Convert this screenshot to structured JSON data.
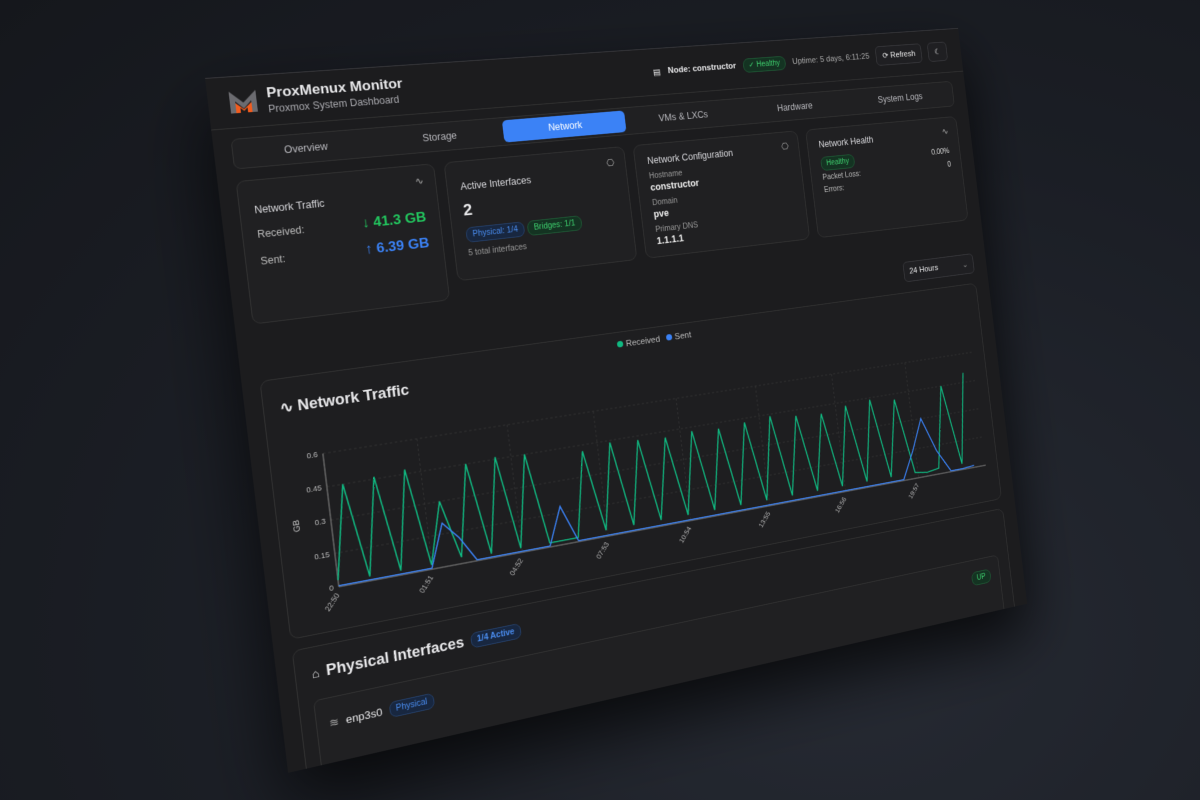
{
  "header": {
    "title": "ProxMenux Monitor",
    "subtitle": "Proxmox System Dashboard",
    "node": "Node: constructor",
    "status": "Healthy",
    "uptime": "Uptime: 5 days, 6:11:25",
    "refresh": "Refresh"
  },
  "tabs": [
    {
      "label": "Overview"
    },
    {
      "label": "Storage"
    },
    {
      "label": "Network",
      "active": true
    },
    {
      "label": "VMs & LXCs"
    },
    {
      "label": "Hardware"
    },
    {
      "label": "System Logs"
    }
  ],
  "traffic": {
    "title": "Network Traffic",
    "received_label": "Received:",
    "received": "↓ 41.3 GB",
    "sent_label": "Sent:",
    "sent": "↑ 6.39 GB"
  },
  "interfaces": {
    "title": "Active Interfaces",
    "count": "2",
    "physical": "Physical: 1/4",
    "bridges": "Bridges: 1/1",
    "total": "5 total interfaces"
  },
  "config": {
    "title": "Network Configuration",
    "hostname_label": "Hostname",
    "hostname": "constructor",
    "domain_label": "Domain",
    "domain": "pve",
    "dns_label": "Primary DNS",
    "dns": "1.1.1.1"
  },
  "health": {
    "title": "Network Health",
    "status": "Healthy",
    "loss_value": "0.00%",
    "loss_label": "Packet Loss:",
    "errors_value": "0",
    "errors_label": "Errors:"
  },
  "range": {
    "selected": "24 Hours"
  },
  "colors": {
    "received": "#10b981",
    "sent": "#3b82f6",
    "accent": "#3b82f6"
  },
  "chart_data": {
    "type": "line",
    "title": "Network Traffic",
    "ylabel": "GB",
    "ylim": [
      0,
      0.6
    ],
    "yticks": [
      0,
      0.15,
      0.3,
      0.45,
      0.6
    ],
    "xticks": [
      "22:50",
      "01:51",
      "04:52",
      "07:53",
      "10:54",
      "13:55",
      "16:56",
      "19:57"
    ],
    "grid": true,
    "legend": "top-center",
    "x": [
      "22:50",
      "23:20",
      "23:50",
      "00:20",
      "00:50",
      "01:20",
      "01:50",
      "02:20",
      "02:50",
      "03:20",
      "03:50",
      "04:20",
      "04:50",
      "05:20",
      "05:50",
      "06:20",
      "06:50",
      "07:20",
      "07:50",
      "08:20",
      "08:50",
      "09:20",
      "09:50",
      "10:20",
      "10:50",
      "11:20",
      "11:50",
      "12:20",
      "12:50",
      "13:20",
      "13:50",
      "14:20",
      "14:50",
      "15:20",
      "15:50",
      "16:20",
      "16:50",
      "17:20",
      "17:50",
      "18:20",
      "18:50",
      "19:20",
      "19:50",
      "20:20",
      "20:50",
      "21:20",
      "21:50",
      "22:20"
    ],
    "series": [
      {
        "name": "Received",
        "values": [
          0.03,
          0.45,
          0.02,
          0.46,
          0.02,
          0.47,
          0.02,
          0.3,
          0.03,
          0.45,
          0.02,
          0.46,
          0.02,
          0.45,
          0.02,
          0.02,
          0.02,
          0.42,
          0.03,
          0.44,
          0.03,
          0.43,
          0.03,
          0.42,
          0.03,
          0.43,
          0.03,
          0.42,
          0.03,
          0.43,
          0.03,
          0.44,
          0.03,
          0.42,
          0.03,
          0.41,
          0.03,
          0.43,
          0.03,
          0.44,
          0.03,
          0.42,
          0.03,
          0.02,
          0.03,
          0.45,
          0.03,
          0.5
        ]
      },
      {
        "name": "Sent",
        "values": [
          0.005,
          0.005,
          0.005,
          0.005,
          0.005,
          0.005,
          0.005,
          0.2,
          0.12,
          0.005,
          0.005,
          0.005,
          0.005,
          0.005,
          0.005,
          0.18,
          0.005,
          0.005,
          0.005,
          0.005,
          0.005,
          0.005,
          0.005,
          0.005,
          0.005,
          0.005,
          0.005,
          0.005,
          0.005,
          0.005,
          0.005,
          0.005,
          0.005,
          0.005,
          0.005,
          0.005,
          0.005,
          0.005,
          0.005,
          0.005,
          0.005,
          0.005,
          0.14,
          0.3,
          0.12,
          0.005,
          0.005,
          0.01
        ]
      }
    ]
  },
  "physical": {
    "title": "Physical Interfaces",
    "active": "1/4 Active",
    "iface": "enp3s0",
    "type": "Physical",
    "state": "UP"
  }
}
